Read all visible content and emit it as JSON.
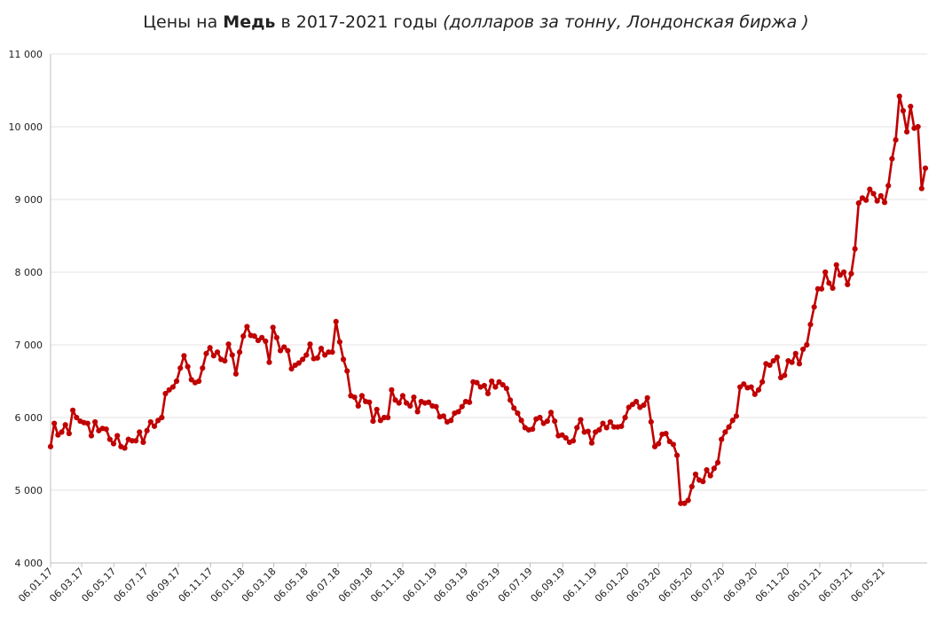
{
  "title": {
    "prefix": "Цены на ",
    "bold": "Медь",
    "middle": " в 2017-2021 годы ",
    "italic": "(долларов за тонну, Лондонская биржа )"
  },
  "colors": {
    "series": "#c00000",
    "grid": "#e3e3e3",
    "axis": "#bfbfbf"
  },
  "chart_data": {
    "type": "line",
    "title": "Цены на Медь в 2017-2021 годы (долларов за тонну, Лондонская биржа )",
    "xlabel": "",
    "ylabel": "",
    "ylim": [
      4000,
      11000
    ],
    "grid": true,
    "legend": "none",
    "y_ticks": [
      "4 000",
      "5 000",
      "6 000",
      "7 000",
      "8 000",
      "9 000",
      "10 000",
      "11 000"
    ],
    "x_ticks": [
      "06.01.17",
      "06.03.17",
      "06.05.17",
      "06.07.17",
      "06.09.17",
      "06.11.17",
      "06.01.18",
      "06.03.18",
      "06.05.18",
      "06.07.18",
      "06.09.18",
      "06.11.18",
      "06.01.19",
      "06.03.19",
      "06.05.19",
      "06.07.19",
      "06.09.19",
      "06.11.19",
      "06.01.20",
      "06.03.20",
      "06.05.20",
      "06.07.20",
      "06.09.20",
      "06.11.20",
      "06.01.21",
      "06.03.21",
      "06.05.21"
    ],
    "x_start": "2017-01-06",
    "series": [
      {
        "name": "",
        "values": [
          5600,
          5920,
          5760,
          5800,
          5900,
          5780,
          6100,
          6000,
          5950,
          5930,
          5920,
          5750,
          5940,
          5820,
          5850,
          5840,
          5700,
          5640,
          5750,
          5600,
          5580,
          5700,
          5680,
          5680,
          5800,
          5660,
          5820,
          5940,
          5880,
          5960,
          6000,
          6330,
          6380,
          6420,
          6500,
          6680,
          6850,
          6700,
          6520,
          6480,
          6500,
          6680,
          6880,
          6960,
          6850,
          6900,
          6800,
          6780,
          7010,
          6860,
          6600,
          6900,
          7120,
          7250,
          7130,
          7120,
          7060,
          7100,
          7050,
          6760,
          7240,
          7100,
          6920,
          6970,
          6920,
          6670,
          6720,
          6750,
          6800,
          6860,
          7010,
          6810,
          6820,
          6950,
          6860,
          6900,
          6900,
          7320,
          7040,
          6800,
          6640,
          6300,
          6280,
          6160,
          6300,
          6220,
          6210,
          5950,
          6110,
          5960,
          6000,
          6000,
          6380,
          6240,
          6200,
          6300,
          6200,
          6160,
          6280,
          6080,
          6220,
          6200,
          6210,
          6160,
          6150,
          6010,
          6020,
          5940,
          5960,
          6060,
          6080,
          6150,
          6220,
          6210,
          6490,
          6480,
          6420,
          6440,
          6330,
          6500,
          6420,
          6490,
          6450,
          6400,
          6240,
          6130,
          6060,
          5960,
          5860,
          5830,
          5840,
          5980,
          6000,
          5920,
          5950,
          6070,
          5950,
          5750,
          5760,
          5720,
          5660,
          5680,
          5860,
          5970,
          5800,
          5810,
          5650,
          5800,
          5830,
          5920,
          5860,
          5940,
          5870,
          5870,
          5880,
          6000,
          6140,
          6180,
          6220,
          6140,
          6170,
          6270,
          5940,
          5600,
          5640,
          5770,
          5780,
          5670,
          5630,
          5480,
          4820,
          4820,
          4860,
          5050,
          5220,
          5140,
          5120,
          5280,
          5200,
          5300,
          5380,
          5700,
          5800,
          5870,
          5960,
          6020,
          6420,
          6460,
          6410,
          6420,
          6320,
          6380,
          6490,
          6740,
          6720,
          6780,
          6830,
          6550,
          6580,
          6780,
          6760,
          6880,
          6740,
          6940,
          7000,
          7280,
          7520,
          7770,
          7770,
          8000,
          7850,
          7780,
          8100,
          7960,
          8000,
          7830,
          7980,
          8320,
          8950,
          9020,
          8990,
          9140,
          9080,
          8980,
          9050,
          8960,
          9190,
          9560,
          9820,
          10420,
          10220,
          9930,
          10280,
          9980,
          10000,
          9150,
          9430
        ]
      }
    ]
  }
}
